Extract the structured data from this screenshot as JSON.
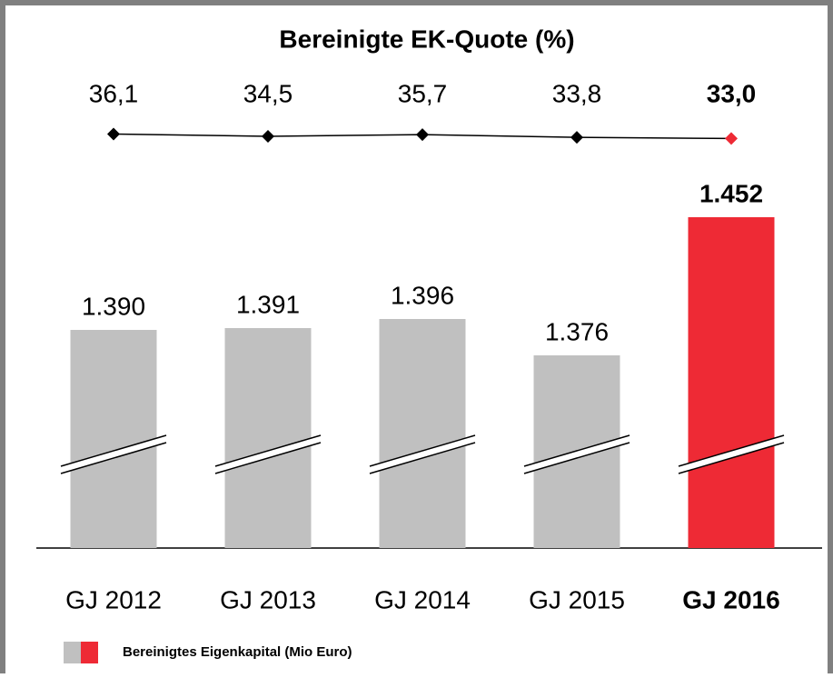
{
  "chart_data": {
    "type": "bar",
    "title": "Bereinigte EK-Quote (%)",
    "categories": [
      "GJ 2012",
      "GJ 2013",
      "GJ 2014",
      "GJ 2015",
      "GJ 2016"
    ],
    "series": [
      {
        "name": "Bereinigtes Eigenkapital (Mio Euro)",
        "type": "bar",
        "values": [
          1390,
          1391,
          1396,
          1376,
          1452
        ],
        "value_labels": [
          "1.390",
          "1.391",
          "1.396",
          "1.376",
          "1.452"
        ],
        "colors": [
          "#c0c0c0",
          "#c0c0c0",
          "#c0c0c0",
          "#c0c0c0",
          "#ee2a35"
        ]
      },
      {
        "type": "line",
        "axis": "y2",
        "color": "#000000",
        "values": [
          36.1,
          34.5,
          35.7,
          33.8,
          33.0
        ],
        "value_labels": [
          "36,1",
          "34,5",
          "35,7",
          "33,8",
          "33,0"
        ],
        "colors": [
          "#000000",
          "#000000",
          "#000000",
          "#000000",
          "#ee2a35"
        ]
      }
    ],
    "ylim": [
      1270,
      1475
    ],
    "y2lim": [
      22,
      52
    ],
    "broken_axis": true
  }
}
